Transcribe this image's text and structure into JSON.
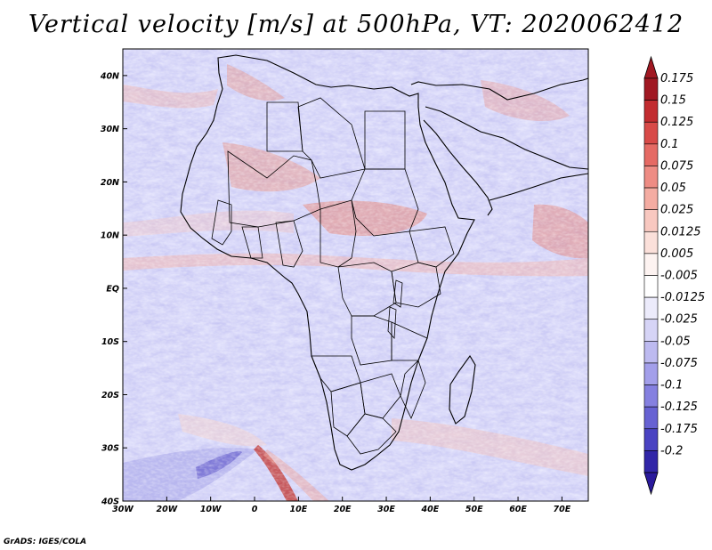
{
  "title": "Vertical velocity [m/s] at 500hPa, VT: 2020062412",
  "credit": "GrADS: IGES/COLA",
  "map": {
    "lon_range": [
      -30,
      76
    ],
    "lat_range": [
      -40,
      45
    ],
    "lon_ticks": [
      {
        "value": -30,
        "label": "30W"
      },
      {
        "value": -20,
        "label": "20W"
      },
      {
        "value": -10,
        "label": "10W"
      },
      {
        "value": 0,
        "label": "0"
      },
      {
        "value": 10,
        "label": "10E"
      },
      {
        "value": 20,
        "label": "20E"
      },
      {
        "value": 30,
        "label": "30E"
      },
      {
        "value": 40,
        "label": "40E"
      },
      {
        "value": 50,
        "label": "50E"
      },
      {
        "value": 60,
        "label": "60E"
      },
      {
        "value": 70,
        "label": "70E"
      }
    ],
    "lat_ticks": [
      {
        "value": 40,
        "label": "40N"
      },
      {
        "value": 30,
        "label": "30N"
      },
      {
        "value": 20,
        "label": "20N"
      },
      {
        "value": 10,
        "label": "10N"
      },
      {
        "value": 0,
        "label": "EQ"
      },
      {
        "value": -10,
        "label": "10S"
      },
      {
        "value": -20,
        "label": "20S"
      },
      {
        "value": -30,
        "label": "30S"
      },
      {
        "value": -40,
        "label": "40S"
      }
    ]
  },
  "colorbar": {
    "levels": [
      {
        "label": "0.175",
        "color": "#a01822"
      },
      {
        "label": "0.15",
        "color": "#c22c30"
      },
      {
        "label": "0.125",
        "color": "#d84a48"
      },
      {
        "label": "0.1",
        "color": "#e56a64"
      },
      {
        "label": "0.075",
        "color": "#ee8c84"
      },
      {
        "label": "0.05",
        "color": "#f4aca2"
      },
      {
        "label": "0.025",
        "color": "#f8c8c0"
      },
      {
        "label": "0.0125",
        "color": "#fbe0da"
      },
      {
        "label": "0.005",
        "color": "#fdf3f1"
      },
      {
        "label": "-0.005",
        "color": "#ffffff"
      },
      {
        "label": "-0.0125",
        "color": "#ecebfb"
      },
      {
        "label": "-0.025",
        "color": "#d6d4f6"
      },
      {
        "label": "-0.05",
        "color": "#bdbaf0"
      },
      {
        "label": "-0.075",
        "color": "#a39fea"
      },
      {
        "label": "-0.1",
        "color": "#8580e0"
      },
      {
        "label": "-0.125",
        "color": "#6762d3"
      },
      {
        "label": "-0.175",
        "color": "#4a43c2"
      },
      {
        "label": "-0.2",
        "color": "#3126a8"
      }
    ],
    "top_color": "#a01822",
    "bottom_color": "#2a1a9c"
  }
}
